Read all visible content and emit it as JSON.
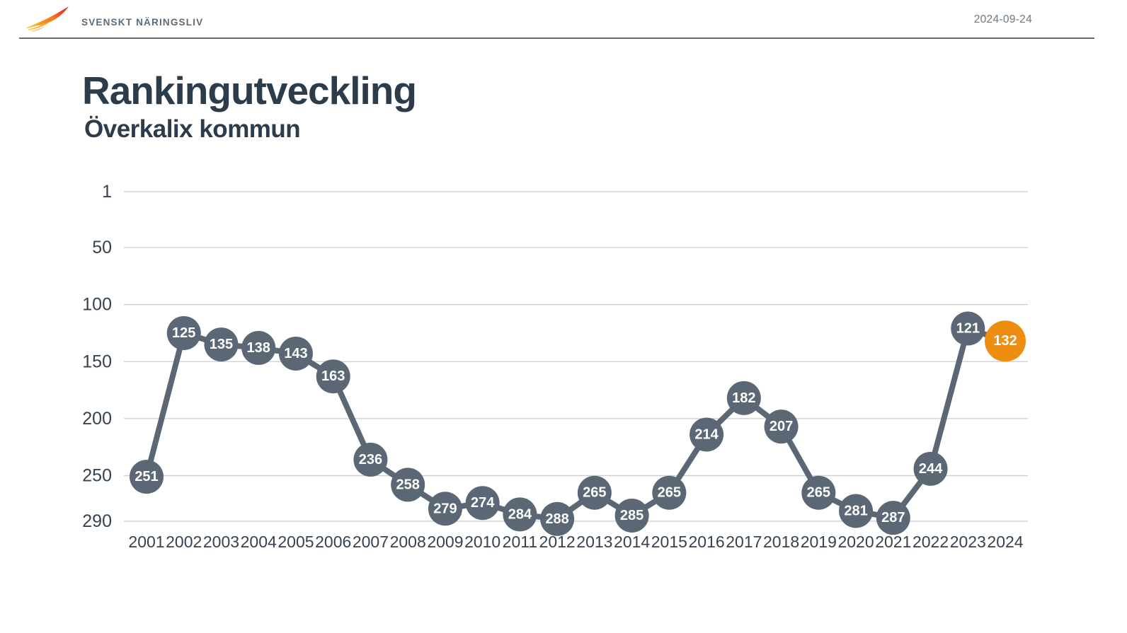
{
  "header": {
    "brand": "SVENSKT NÄRINGSLIV",
    "date": "2024-09-24"
  },
  "icons": {
    "brand_logo": "wing-icon"
  },
  "page": {
    "title": "Rankingutveckling",
    "subtitle": "Överkalix kommun"
  },
  "colors": {
    "series": "#5b6775",
    "highlight": "#ee8e10",
    "point_label": "#ffffff",
    "title_text": "#2d3c4b",
    "axis_text": "#36434f",
    "gridline": "#cccccc",
    "date_text": "#6d7881",
    "divider": "#6a6a6a"
  },
  "chart_data": {
    "type": "line",
    "title": "Rankingutveckling — Överkalix kommun",
    "categories": [
      "2001",
      "2002",
      "2003",
      "2004",
      "2005",
      "2006",
      "2007",
      "2008",
      "2009",
      "2010",
      "2011",
      "2012",
      "2013",
      "2014",
      "2015",
      "2016",
      "2017",
      "2018",
      "2019",
      "2020",
      "2021",
      "2022",
      "2023",
      "2024"
    ],
    "values": [
      251,
      125,
      135,
      138,
      143,
      163,
      236,
      258,
      279,
      274,
      284,
      288,
      265,
      285,
      265,
      214,
      182,
      207,
      265,
      281,
      287,
      244,
      121,
      132
    ],
    "xlabel": "",
    "ylabel": "",
    "y_ticks": [
      1,
      50,
      100,
      150,
      200,
      250,
      290
    ],
    "ylim": [
      1,
      290
    ],
    "y_axis_inverted": true,
    "grid": true,
    "legend": false,
    "point_labels": true,
    "highlight_index": 23
  }
}
